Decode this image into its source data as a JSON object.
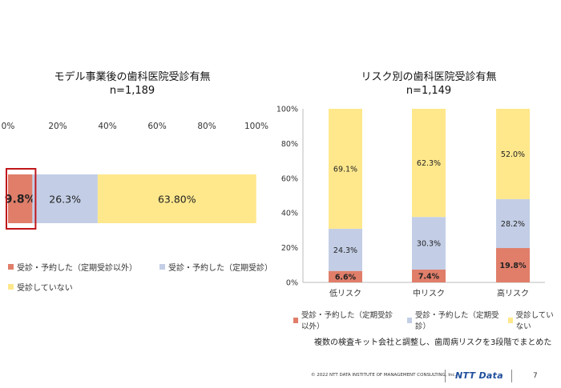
{
  "page_number": "7",
  "footer": {
    "copyright": "© 2022 NTT DATA INSTITUTE OF MANAGEMENT CONSULTING, Inc.",
    "logo_text": "NTT Data"
  },
  "note": "複数の検査キット会社と調整し、歯周病リスクを3段階でまとめた",
  "colors": {
    "non_regular": "#E07E6A",
    "regular": "#C3CEE6",
    "none": "#FFE88C",
    "highlight": "#C0171C"
  },
  "chart_data": [
    {
      "type": "bar",
      "orientation": "horizontal-stacked",
      "title": "モデル事業後の歯科医院受診有無",
      "subtitle": "n=1,189",
      "xlim": [
        0,
        100
      ],
      "ticks": [
        "0%",
        "20%",
        "40%",
        "60%",
        "80%",
        "100%"
      ],
      "series": [
        {
          "name": "受診・予約した（定期受診以外）",
          "value": 9.8,
          "label": "9.8%"
        },
        {
          "name": "受診・予約した（定期受診）",
          "value": 26.3,
          "label": "26.3%"
        },
        {
          "name": "受診していない",
          "value": 63.8,
          "label": "63.80%"
        }
      ],
      "highlighted_series": "受診・予約した（定期受診以外）",
      "legend": "bottom"
    },
    {
      "type": "bar",
      "orientation": "vertical-stacked",
      "title": "リスク別の歯科医院受診有無",
      "subtitle": "n=1,149",
      "ylim": [
        0,
        100
      ],
      "ticks": [
        "0%",
        "20%",
        "40%",
        "60%",
        "80%",
        "100%"
      ],
      "categories": [
        "低リスク",
        "中リスク",
        "高リスク"
      ],
      "series": [
        {
          "name": "受診・予約した（定期受診以外）",
          "values": [
            6.6,
            7.4,
            19.8
          ],
          "labels": [
            "6.6%",
            "7.4%",
            "19.8%"
          ]
        },
        {
          "name": "受診・予約した（定期受診）",
          "values": [
            24.3,
            30.3,
            28.2
          ],
          "labels": [
            "24.3%",
            "30.3%",
            "28.2%"
          ]
        },
        {
          "name": "受診していない",
          "values": [
            69.1,
            62.3,
            52.0
          ],
          "labels": [
            "69.1%",
            "62.3%",
            "52.0%"
          ]
        }
      ],
      "legend": "bottom",
      "grid": false
    }
  ]
}
